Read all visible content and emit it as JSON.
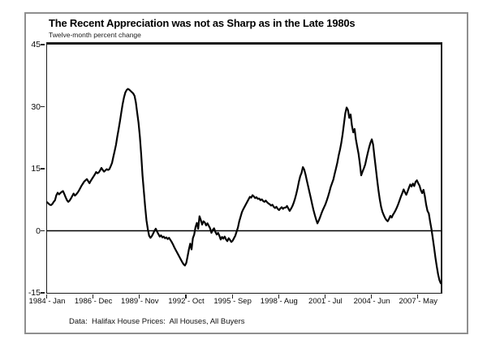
{
  "figure": {
    "title": "The Recent Appreciation was not as Sharp as in the Late 1980s",
    "subtitle": "Twelve-month percent change",
    "footnote": "Data:  Halifax House Prices:  All Houses, All Buyers"
  },
  "chart_data": {
    "type": "line",
    "title": "The Recent Appreciation was not as Sharp as in the Late 1980s",
    "subtitle": "Twelve-month percent change",
    "source_note": "Data:  Halifax House Prices:  All Houses, All Buyers",
    "frequency": "monthly",
    "x_start": "1984-01",
    "x_end": "2008-10",
    "x_tick_labels": [
      "1984 - Jan",
      "1986 - Dec",
      "1989 - Nov",
      "1992 - Oct",
      "1995 - Sep",
      "1998 - Aug",
      "2001 - Jul",
      "2004 - Jun",
      "2007 - May"
    ],
    "x_tick_interval_months": 35,
    "y_ticks": [
      45,
      30,
      15,
      0,
      -15
    ],
    "ylim": [
      -15,
      45
    ],
    "zero_line": true,
    "grid": false,
    "legend": "none",
    "line_color": "#050505",
    "series": [
      {
        "name": "Halifax house prices, 12-month percent change (All Houses, All Buyers)",
        "values": [
          6.9,
          6.6,
          6.3,
          6.2,
          6.5,
          7.0,
          7.4,
          8.6,
          9.2,
          8.8,
          9.1,
          9.4,
          9.6,
          8.9,
          8.1,
          7.4,
          7.0,
          7.3,
          7.8,
          8.4,
          9.0,
          8.5,
          8.8,
          9.2,
          9.7,
          10.3,
          10.9,
          11.4,
          11.9,
          12.2,
          12.5,
          12.0,
          11.5,
          12.1,
          12.6,
          13.1,
          13.6,
          14.2,
          13.9,
          14.1,
          14.6,
          15.2,
          14.7,
          14.3,
          14.6,
          14.9,
          14.7,
          14.9,
          15.6,
          16.4,
          17.9,
          19.3,
          20.8,
          22.8,
          24.6,
          26.5,
          28.6,
          30.6,
          32.2,
          33.4,
          34.0,
          34.3,
          34.1,
          33.8,
          33.5,
          33.2,
          32.6,
          31.0,
          28.5,
          26.1,
          22.8,
          18.5,
          13.4,
          9.6,
          5.8,
          2.5,
          0.4,
          -1.2,
          -1.7,
          -1.3,
          -0.7,
          0.0,
          0.5,
          -0.2,
          -0.8,
          -1.4,
          -1.1,
          -1.6,
          -1.4,
          -1.8,
          -1.6,
          -2.0,
          -1.7,
          -2.2,
          -2.7,
          -3.3,
          -4.0,
          -4.6,
          -5.2,
          -5.8,
          -6.4,
          -7.0,
          -7.6,
          -8.1,
          -8.4,
          -7.8,
          -6.2,
          -4.5,
          -3.1,
          -4.5,
          -1.8,
          -0.9,
          0.9,
          1.9,
          0.5,
          3.5,
          2.6,
          1.5,
          2.3,
          2.0,
          1.3,
          1.8,
          1.2,
          0.6,
          -0.5,
          0.2,
          0.6,
          -0.3,
          -0.9,
          -0.5,
          -1.2,
          -2.1,
          -1.5,
          -1.9,
          -1.4,
          -2.1,
          -2.5,
          -1.8,
          -2.2,
          -2.7,
          -2.4,
          -1.8,
          -1.2,
          -0.2,
          0.8,
          2.3,
          3.4,
          4.5,
          5.2,
          5.8,
          6.4,
          7.0,
          7.6,
          8.2,
          8.0,
          8.6,
          8.3,
          7.9,
          8.1,
          7.7,
          7.8,
          7.4,
          7.6,
          7.2,
          7.0,
          7.3,
          6.9,
          6.6,
          6.4,
          6.1,
          6.3,
          5.8,
          5.5,
          5.8,
          5.3,
          5.0,
          5.4,
          5.7,
          5.3,
          5.6,
          5.6,
          6.0,
          5.4,
          4.8,
          5.3,
          5.9,
          6.7,
          7.7,
          8.9,
          10.3,
          11.9,
          13.2,
          14.0,
          15.4,
          14.8,
          13.6,
          12.1,
          10.7,
          9.3,
          7.9,
          6.4,
          5.0,
          3.8,
          2.7,
          1.8,
          2.5,
          3.3,
          4.2,
          5.0,
          5.7,
          6.4,
          7.3,
          8.3,
          9.4,
          10.6,
          11.5,
          12.4,
          13.8,
          15.1,
          16.5,
          18.2,
          19.6,
          21.3,
          23.4,
          25.9,
          28.4,
          29.8,
          29.2,
          27.3,
          28.1,
          25.4,
          23.8,
          24.6,
          22.1,
          20.3,
          18.6,
          16.2,
          13.4,
          14.3,
          15.1,
          16.0,
          17.5,
          18.9,
          20.2,
          21.3,
          22.1,
          20.8,
          17.9,
          15.2,
          12.4,
          9.8,
          7.6,
          5.8,
          4.6,
          3.8,
          3.1,
          2.6,
          2.3,
          2.9,
          3.6,
          3.2,
          3.9,
          4.4,
          5.0,
          5.7,
          6.5,
          7.4,
          8.3,
          9.1,
          10.0,
          9.3,
          8.7,
          9.5,
          10.4,
          11.2,
          10.7,
          11.4,
          10.8,
          11.8,
          12.2,
          11.5,
          10.9,
          9.8,
          9.1,
          9.9,
          8.4,
          6.3,
          4.8,
          4.2,
          2.2,
          0.4,
          -1.8,
          -4.1,
          -6.5,
          -8.6,
          -10.5,
          -11.9,
          -12.7
        ]
      }
    ]
  }
}
